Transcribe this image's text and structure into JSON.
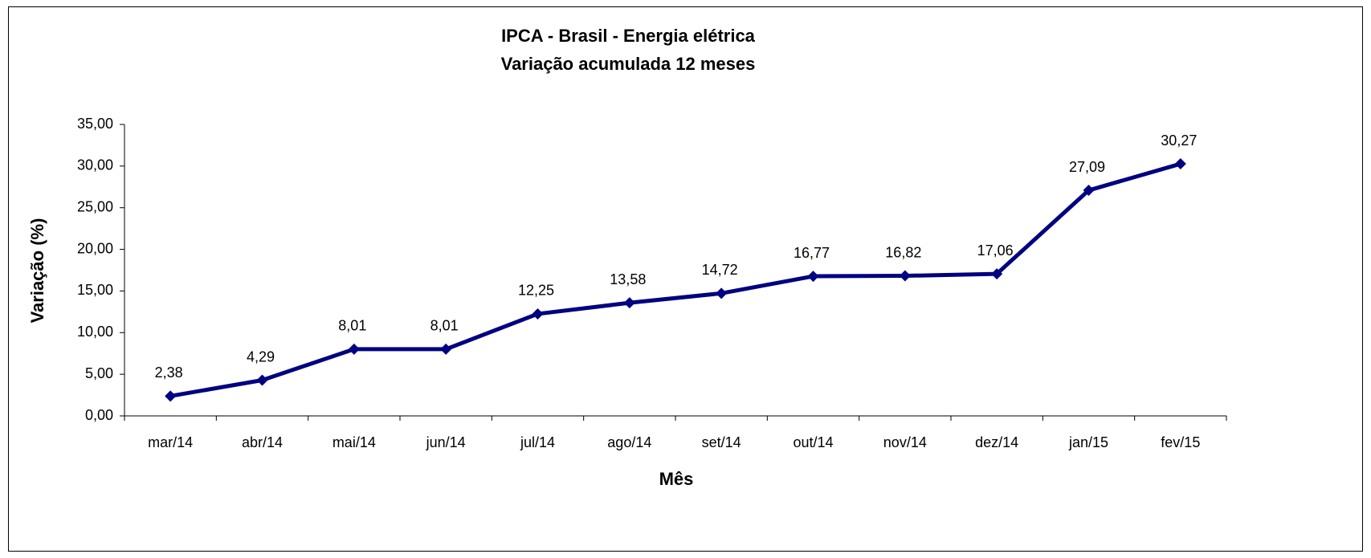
{
  "chart_data": {
    "type": "line",
    "title": "IPCA - Brasil - Energia elétrica",
    "subtitle": "Variação acumulada 12 meses",
    "x_label": "Mês",
    "y_label": "Variação (%)",
    "categories": [
      "mar/14",
      "abr/14",
      "mai/14",
      "jun/14",
      "jul/14",
      "ago/14",
      "set/14",
      "out/14",
      "nov/14",
      "dez/14",
      "jan/15",
      "fev/15"
    ],
    "values": [
      2.38,
      4.29,
      8.01,
      8.01,
      12.25,
      13.58,
      14.72,
      16.77,
      16.82,
      17.06,
      27.09,
      30.27
    ],
    "value_labels": [
      "2,38",
      "4,29",
      "8,01",
      "8,01",
      "12,25",
      "13,58",
      "14,72",
      "16,77",
      "16,82",
      "17,06",
      "27,09",
      "30,27"
    ],
    "color": "#000080",
    "ylim": [
      0,
      35
    ],
    "yticks": [
      {
        "value": 0,
        "label": "0,00"
      },
      {
        "value": 5,
        "label": "5,00"
      },
      {
        "value": 10,
        "label": "10,00"
      },
      {
        "value": 15,
        "label": "15,00"
      },
      {
        "value": 20,
        "label": "20,00"
      },
      {
        "value": 25,
        "label": "25,00"
      },
      {
        "value": 30,
        "label": "30,00"
      },
      {
        "value": 35,
        "label": "35,00"
      }
    ],
    "grid": false
  }
}
